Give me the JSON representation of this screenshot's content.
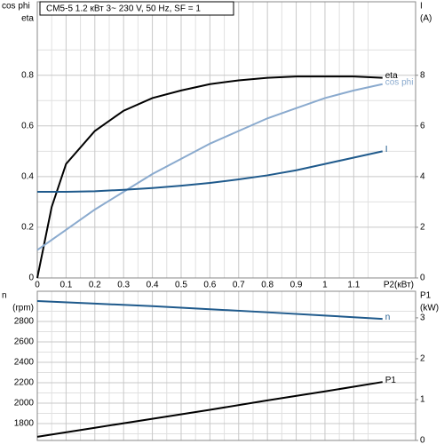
{
  "chart_data": [
    {
      "type": "line",
      "title": "CM5-5    1.2 кВт   3~ 230 V, 50 Hz, SF = 1",
      "ylabel": [
        "cos phi",
        "eta"
      ],
      "y2label": [
        "I",
        "(A)"
      ],
      "xlabel": "P2(кВт)",
      "x": [
        0,
        0.05,
        0.1,
        0.2,
        0.3,
        0.4,
        0.5,
        0.6,
        0.7,
        0.8,
        0.9,
        1.0,
        1.1,
        1.2
      ],
      "series": [
        {
          "name": "eta",
          "color": "#000000",
          "values": [
            0,
            0.28,
            0.45,
            0.58,
            0.66,
            0.71,
            0.74,
            0.765,
            0.78,
            0.79,
            0.795,
            0.795,
            0.795,
            0.79
          ]
        },
        {
          "name": "cos phi",
          "color": "#8aaace",
          "values": [
            0.11,
            0.15,
            0.19,
            0.27,
            0.34,
            0.41,
            0.47,
            0.53,
            0.58,
            0.63,
            0.67,
            0.71,
            0.74,
            0.765
          ]
        },
        {
          "name": "I",
          "color": "#1f5a8c",
          "axis": "y2",
          "values": [
            3.4,
            3.4,
            3.4,
            3.42,
            3.48,
            3.55,
            3.64,
            3.75,
            3.89,
            4.05,
            4.25,
            4.5,
            4.75,
            5.0
          ]
        }
      ],
      "xlim": [
        0,
        1.315
      ],
      "xticks": [
        0,
        0.1,
        0.2,
        0.3,
        0.4,
        0.5,
        0.6,
        0.7,
        0.8,
        0.9,
        1,
        1.1
      ],
      "ylim": [
        0,
        1.09
      ],
      "yticks": [
        0,
        0.2,
        0.4,
        0.6,
        0.8
      ],
      "y2lim": [
        0,
        10.9
      ],
      "y2ticks": [
        0,
        2,
        4,
        6,
        8
      ],
      "grid": true,
      "show_xtick_labels": true
    },
    {
      "type": "line",
      "ylabel": [
        "n",
        "(rpm)"
      ],
      "y2label": [
        "P1",
        "(kW)"
      ],
      "x": [
        0,
        0.2,
        0.4,
        0.6,
        0.8,
        1.0,
        1.2
      ],
      "series": [
        {
          "name": "n",
          "color": "#1f5a8c",
          "values": [
            3000,
            2975,
            2950,
            2920,
            2890,
            2858,
            2825
          ]
        },
        {
          "name": "P1",
          "color": "#000000",
          "axis": "y2",
          "values": [
            0.09,
            0.31,
            0.53,
            0.75,
            0.98,
            1.2,
            1.43
          ]
        }
      ],
      "xlim": [
        0,
        1.315
      ],
      "xticks": [
        0,
        0.1,
        0.2,
        0.3,
        0.4,
        0.5,
        0.6,
        0.7,
        0.8,
        0.9,
        1,
        1.1
      ],
      "ylim": [
        1635,
        3096
      ],
      "yticks": [
        1800,
        2000,
        2200,
        2400,
        2600,
        2800
      ],
      "y2lim": [
        0,
        3.65
      ],
      "y2ticks": [
        0,
        1,
        2,
        3
      ],
      "grid": true,
      "show_xtick_labels": false
    }
  ]
}
